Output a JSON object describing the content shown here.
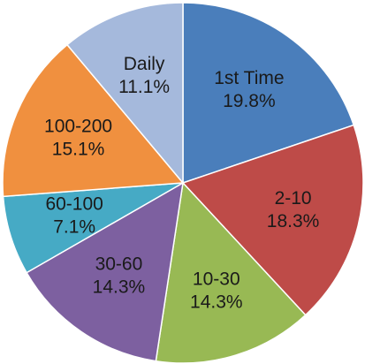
{
  "chart_data": {
    "type": "pie",
    "categories": [
      "1st Time",
      "2-10",
      "10-30",
      "30-60",
      "60-100",
      "100-200",
      "Daily"
    ],
    "values": [
      19.8,
      18.3,
      14.3,
      14.3,
      7.1,
      15.1,
      11.1
    ],
    "value_labels": [
      "19.8%",
      "18.3%",
      "14.3%",
      "14.3%",
      "7.1%",
      "15.1%",
      "11.1%"
    ],
    "colors": [
      "#4a7ebb",
      "#be4b48",
      "#98b954",
      "#7d60a0",
      "#46aac5",
      "#f0903f",
      "#a5b9dc"
    ]
  }
}
